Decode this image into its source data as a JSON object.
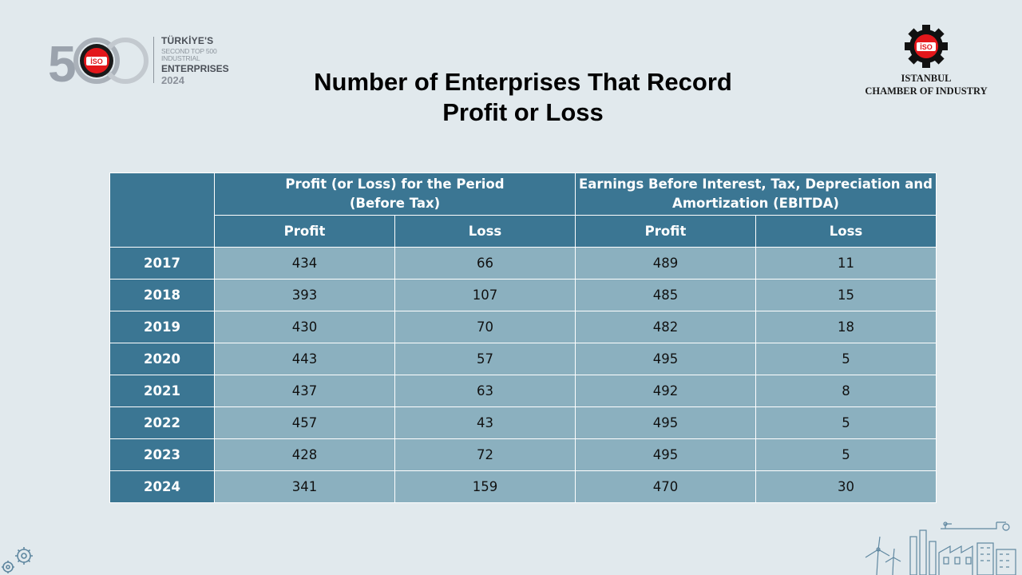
{
  "branding_left": {
    "line1": "TÜRKİYE'S",
    "line2": "SECOND TOP 500 INDUSTRIAL",
    "line3": "ENTERPRISES",
    "line4": "2024",
    "badge": "İSO"
  },
  "branding_right": {
    "badge": "İSO",
    "line1": "ISTANBUL",
    "line2": "CHAMBER OF INDUSTRY"
  },
  "title": {
    "line1": "Number of Enterprises That Record",
    "line2": "Profit or Loss"
  },
  "table": {
    "group1_line1": "Profit (or Loss) for the Period",
    "group1_line2": "(Before Tax)",
    "group2_line1": "Earnings Before Interest, Tax, Depreciation and",
    "group2_line2": "Amortization (EBITDA)",
    "sub_headers": [
      "Profit",
      "Loss",
      "Profit",
      "Loss"
    ],
    "rows": [
      {
        "year": "2017",
        "values": [
          "434",
          "66",
          "489",
          "11"
        ]
      },
      {
        "year": "2018",
        "values": [
          "393",
          "107",
          "485",
          "15"
        ]
      },
      {
        "year": "2019",
        "values": [
          "430",
          "70",
          "482",
          "18"
        ]
      },
      {
        "year": "2020",
        "values": [
          "443",
          "57",
          "495",
          "5"
        ]
      },
      {
        "year": "2021",
        "values": [
          "437",
          "63",
          "492",
          "8"
        ]
      },
      {
        "year": "2022",
        "values": [
          "457",
          "43",
          "495",
          "5"
        ]
      },
      {
        "year": "2023",
        "values": [
          "428",
          "72",
          "495",
          "5"
        ]
      },
      {
        "year": "2024",
        "values": [
          "341",
          "159",
          "470",
          "30"
        ]
      }
    ]
  },
  "colors": {
    "background": "#e1e9ed",
    "header_fill": "#3b7693",
    "cell_fill": "#8bb0bf",
    "brand_red": "#e3171b"
  }
}
